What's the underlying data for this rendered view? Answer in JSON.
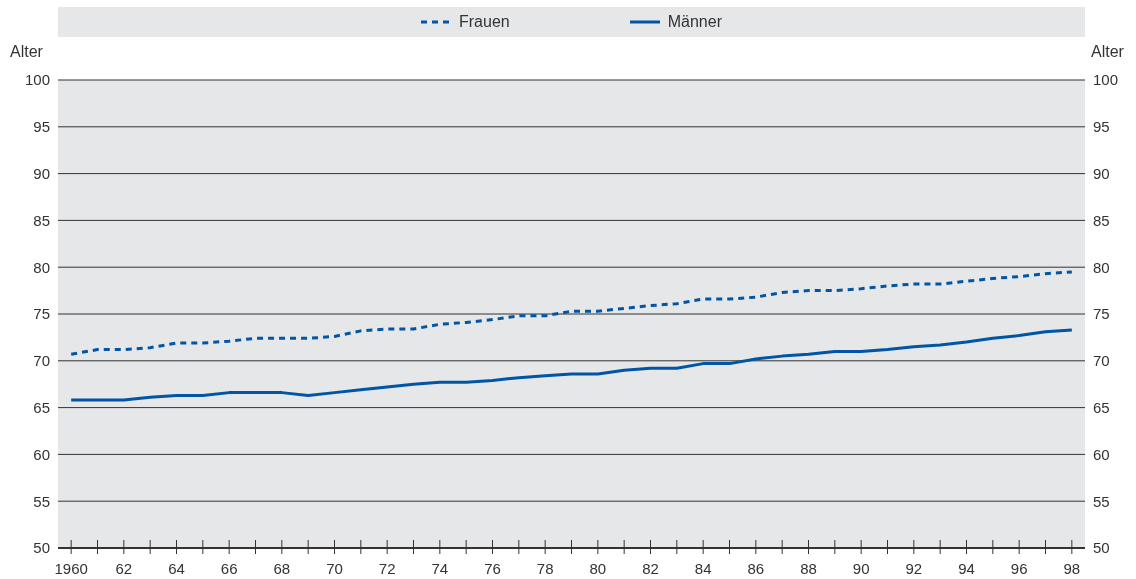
{
  "chart_data": {
    "type": "line",
    "ylabel": "Alter",
    "y2label": "Alter",
    "x": [
      1960,
      1961,
      1962,
      1963,
      1964,
      1965,
      1966,
      1967,
      1968,
      1969,
      1970,
      1971,
      1972,
      1973,
      1974,
      1975,
      1976,
      1977,
      1978,
      1979,
      1980,
      1981,
      1982,
      1983,
      1984,
      1985,
      1986,
      1987,
      1988,
      1989,
      1990,
      1991,
      1992,
      1993,
      1994,
      1995,
      1996,
      1997,
      1998
    ],
    "series": [
      {
        "name": "Frauen",
        "color": "#0055a4",
        "line_style": "dashed",
        "values": [
          70.7,
          71.2,
          71.2,
          71.4,
          71.9,
          71.9,
          72.1,
          72.4,
          72.4,
          72.4,
          72.6,
          73.2,
          73.4,
          73.4,
          73.9,
          74.1,
          74.4,
          74.8,
          74.8,
          75.3,
          75.3,
          75.6,
          75.9,
          76.1,
          76.6,
          76.6,
          76.8,
          77.3,
          77.5,
          77.5,
          77.7,
          78.0,
          78.2,
          78.2,
          78.5,
          78.8,
          79.0,
          79.3,
          79.5
        ]
      },
      {
        "name": "Männer",
        "color": "#0055a4",
        "line_style": "solid",
        "values": [
          65.8,
          65.8,
          65.8,
          66.1,
          66.3,
          66.3,
          66.6,
          66.6,
          66.6,
          66.3,
          66.6,
          66.9,
          67.2,
          67.5,
          67.7,
          67.7,
          67.9,
          68.2,
          68.4,
          68.6,
          68.6,
          69.0,
          69.2,
          69.2,
          69.7,
          69.7,
          70.2,
          70.5,
          70.7,
          71.0,
          71.0,
          71.2,
          71.5,
          71.7,
          72.0,
          72.4,
          72.7,
          73.1,
          73.3
        ]
      }
    ],
    "xlim": [
      1959.5,
      1998.5
    ],
    "xticks": [
      {
        "value": 1960,
        "label": "1960"
      },
      {
        "value": 1961,
        "label": null
      },
      {
        "value": 1962,
        "label": "62"
      },
      {
        "value": 1963,
        "label": null
      },
      {
        "value": 1964,
        "label": "64"
      },
      {
        "value": 1965,
        "label": null
      },
      {
        "value": 1966,
        "label": "66"
      },
      {
        "value": 1967,
        "label": null
      },
      {
        "value": 1968,
        "label": "68"
      },
      {
        "value": 1969,
        "label": null
      },
      {
        "value": 1970,
        "label": "70"
      },
      {
        "value": 1971,
        "label": null
      },
      {
        "value": 1972,
        "label": "72"
      },
      {
        "value": 1973,
        "label": null
      },
      {
        "value": 1974,
        "label": "74"
      },
      {
        "value": 1975,
        "label": null
      },
      {
        "value": 1976,
        "label": "76"
      },
      {
        "value": 1977,
        "label": null
      },
      {
        "value": 1978,
        "label": "78"
      },
      {
        "value": 1979,
        "label": null
      },
      {
        "value": 1980,
        "label": "80"
      },
      {
        "value": 1981,
        "label": null
      },
      {
        "value": 1982,
        "label": "82"
      },
      {
        "value": 1983,
        "label": null
      },
      {
        "value": 1984,
        "label": "84"
      },
      {
        "value": 1985,
        "label": null
      },
      {
        "value": 1986,
        "label": "86"
      },
      {
        "value": 1987,
        "label": null
      },
      {
        "value": 1988,
        "label": "88"
      },
      {
        "value": 1989,
        "label": null
      },
      {
        "value": 1990,
        "label": "90"
      },
      {
        "value": 1991,
        "label": null
      },
      {
        "value": 1992,
        "label": "92"
      },
      {
        "value": 1993,
        "label": null
      },
      {
        "value": 1994,
        "label": "94"
      },
      {
        "value": 1995,
        "label": null
      },
      {
        "value": 1996,
        "label": "96"
      },
      {
        "value": 1997,
        "label": null
      },
      {
        "value": 1998,
        "label": "98"
      }
    ],
    "ylim": [
      50,
      100
    ],
    "yticks": [
      50,
      55,
      60,
      65,
      70,
      75,
      80,
      85,
      90,
      95,
      100
    ],
    "y2lim": [
      50,
      100
    ],
    "y2ticks": [
      50,
      55,
      60,
      65,
      70,
      75,
      80,
      85,
      90,
      95,
      100
    ],
    "grid": "y",
    "legend": "top",
    "marker": "none"
  }
}
